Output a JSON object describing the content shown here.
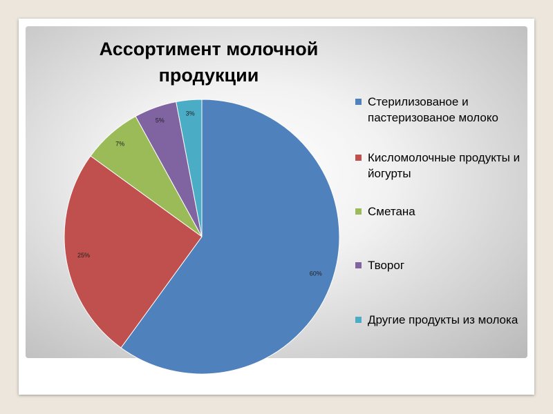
{
  "chart_data": {
    "type": "pie",
    "title": "Ассортимент молочной продукции",
    "title_lines": [
      "Ассортимент молочной",
      "продукции"
    ],
    "categories": [
      "Стерилизованое и пастеризованое молоко",
      "Кисломолочные продукты и йогурты",
      "Сметана",
      "Творог",
      "Другие продукты из молока"
    ],
    "values": [
      60,
      25,
      7,
      5,
      3
    ],
    "value_labels": [
      "60%",
      "25%",
      "7%",
      "5%",
      "3%"
    ],
    "colors": [
      "#4f81bd",
      "#c0504d",
      "#9bbb59",
      "#8064a2",
      "#4bacc6"
    ],
    "legend_position": "right"
  }
}
